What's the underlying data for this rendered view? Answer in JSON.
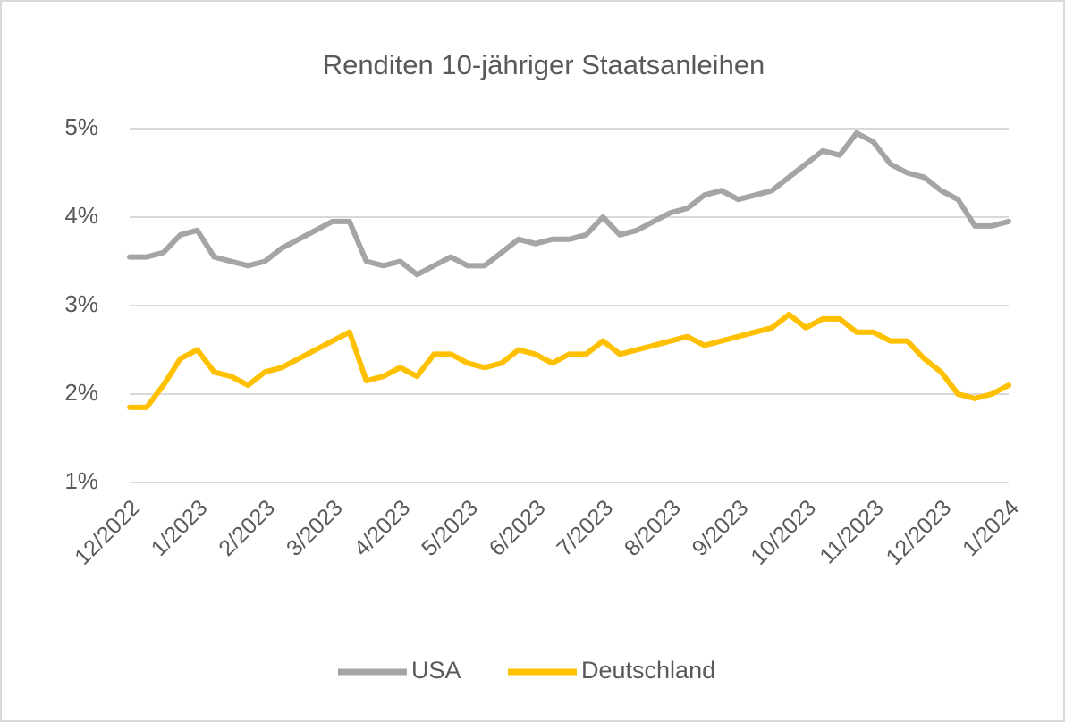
{
  "chart_data": {
    "type": "line",
    "title": "Renditen 10-jähriger Staatsanleihen",
    "categories": [
      "12/2022",
      null,
      null,
      null,
      "1/2023",
      null,
      null,
      null,
      "2/2023",
      null,
      null,
      null,
      "3/2023",
      null,
      null,
      null,
      "4/2023",
      null,
      null,
      null,
      "5/2023",
      null,
      null,
      null,
      "6/2023",
      null,
      null,
      null,
      "7/2023",
      null,
      null,
      null,
      "8/2023",
      null,
      null,
      null,
      "9/2023",
      null,
      null,
      null,
      "10/2023",
      null,
      null,
      null,
      "11/2023",
      null,
      null,
      null,
      "12/2023",
      null,
      null,
      null,
      "1/2024"
    ],
    "series": [
      {
        "name": "USA",
        "color": "#a5a5a5",
        "values": [
          3.55,
          3.55,
          3.6,
          3.8,
          3.85,
          3.55,
          3.5,
          3.45,
          3.5,
          3.65,
          3.75,
          3.85,
          3.95,
          3.95,
          3.5,
          3.45,
          3.5,
          3.35,
          3.45,
          3.55,
          3.45,
          3.45,
          3.6,
          3.75,
          3.7,
          3.75,
          3.75,
          3.8,
          4.0,
          3.8,
          3.85,
          3.95,
          4.05,
          4.1,
          4.25,
          4.3,
          4.2,
          4.25,
          4.3,
          4.45,
          4.6,
          4.75,
          4.7,
          4.95,
          4.85,
          4.6,
          4.5,
          4.45,
          4.3,
          4.2,
          3.9,
          3.9,
          3.95
        ]
      },
      {
        "name": "Deutschland",
        "color": "#ffc000",
        "values": [
          1.85,
          1.85,
          2.1,
          2.4,
          2.5,
          2.25,
          2.2,
          2.1,
          2.25,
          2.3,
          2.4,
          2.5,
          2.6,
          2.7,
          2.15,
          2.2,
          2.3,
          2.2,
          2.45,
          2.45,
          2.35,
          2.3,
          2.35,
          2.5,
          2.45,
          2.35,
          2.45,
          2.45,
          2.6,
          2.45,
          2.5,
          2.55,
          2.6,
          2.65,
          2.55,
          2.6,
          2.65,
          2.7,
          2.75,
          2.9,
          2.75,
          2.85,
          2.85,
          2.7,
          2.7,
          2.6,
          2.6,
          2.4,
          2.25,
          2.0,
          1.95,
          2.0,
          2.1
        ]
      }
    ],
    "ylim": [
      1,
      5
    ],
    "yticks": [
      {
        "value": 1,
        "label": "1%"
      },
      {
        "value": 2,
        "label": "2%"
      },
      {
        "value": 3,
        "label": "3%"
      },
      {
        "value": 4,
        "label": "4%"
      },
      {
        "value": 5,
        "label": "5%"
      }
    ],
    "grid": true,
    "legend": "bottom"
  }
}
